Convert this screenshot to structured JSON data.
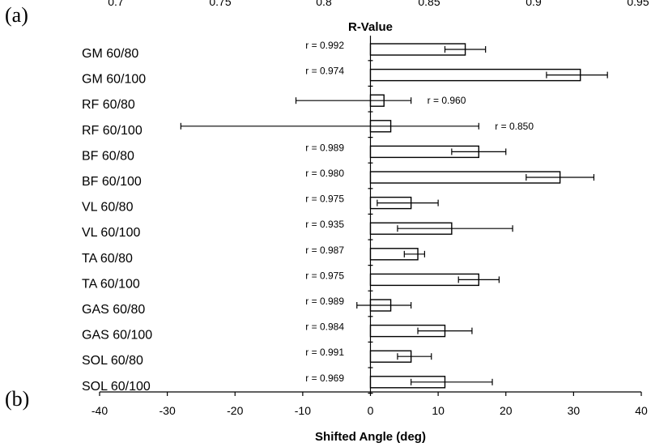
{
  "panel_labels": {
    "a": "(a)",
    "b": "(b)"
  },
  "chart_data": {
    "type": "bar",
    "orientation": "horizontal",
    "categories": [
      "GM 60/80",
      "GM 60/100",
      "RF 60/80",
      "RF 60/100",
      "BF 60/80",
      "BF 60/100",
      "VL 60/80",
      "VL 60/100",
      "TA 60/80",
      "TA 60/100",
      "GAS 60/80",
      "GAS 60/100",
      "SOL 60/80",
      "SOL 60/100"
    ],
    "series": [
      {
        "values": [
          14,
          31,
          2,
          3,
          16,
          28,
          6,
          12,
          7,
          16,
          3,
          11,
          6,
          11
        ],
        "error_low": [
          11,
          26,
          -11,
          -28,
          12,
          23,
          1,
          4,
          5,
          13,
          -2,
          7,
          4,
          6
        ],
        "error_high": [
          17,
          35,
          6,
          16,
          20,
          33,
          10,
          21,
          8,
          19,
          6,
          15,
          9,
          18
        ]
      }
    ],
    "r_labels": [
      "r = 0.992",
      "r = 0.974",
      "r = 0.960",
      "r = 0.850",
      "r = 0.989",
      "r = 0.980",
      "r = 0.975",
      "r = 0.935",
      "r = 0.987",
      "r = 0.975",
      "r = 0.989",
      "r = 0.984",
      "r = 0.991",
      "r = 0.969"
    ],
    "x_axis": {
      "label": "Shifted Angle (deg)",
      "range": [
        -40,
        40
      ],
      "ticks": [
        "-40",
        "-30",
        "-20",
        "-10",
        "0",
        "10",
        "20",
        "30",
        "40"
      ]
    },
    "top_axis": {
      "label": "R-Value",
      "ticks": [
        "0.7",
        "0.75",
        "0.8",
        "0.85",
        "0.9",
        "0.95"
      ]
    },
    "grid": false,
    "legend": "none"
  }
}
